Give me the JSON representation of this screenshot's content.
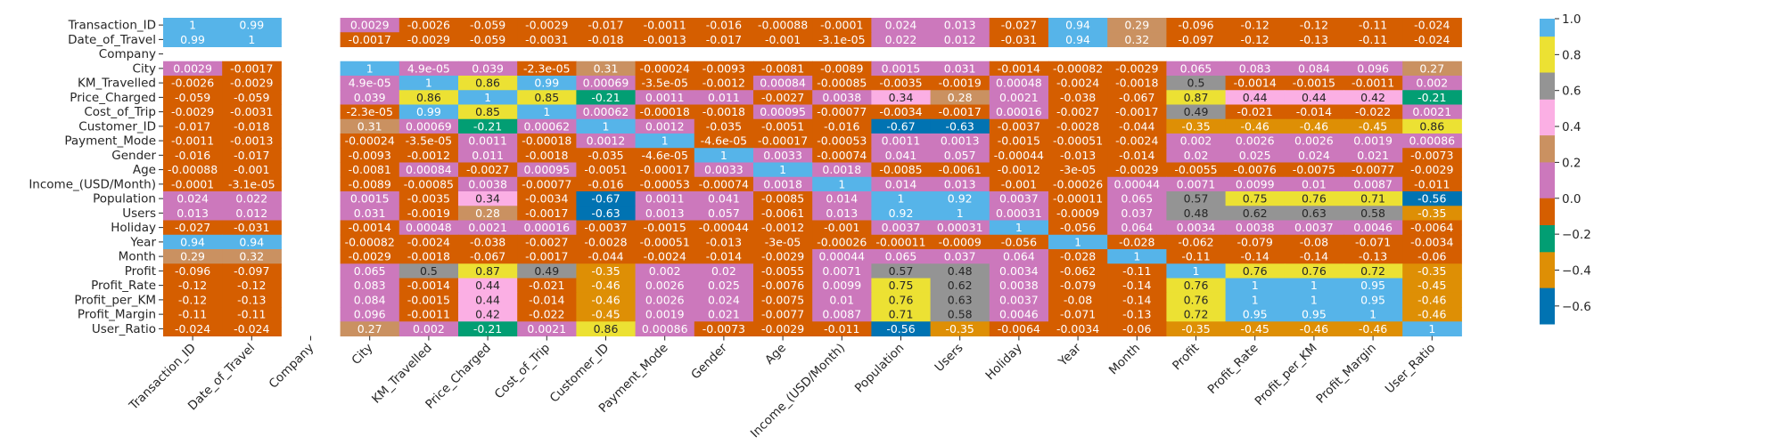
{
  "chart_data": {
    "type": "heatmap",
    "title": "",
    "xlabel": "",
    "ylabel": "",
    "variables": [
      "Transaction_ID",
      "Date_of_Travel",
      "Company",
      "City",
      "KM_Travelled",
      "Price_Charged",
      "Cost_of_Trip",
      "Customer_ID",
      "Payment_Mode",
      "Gender",
      "Age",
      "Income_(USD/Month)",
      "Population",
      "Users",
      "Holiday",
      "Year",
      "Month",
      "Profit",
      "Profit_Rate",
      "Profit_per_KM",
      "Profit_Margin",
      "User_Ratio"
    ],
    "matrix": [
      [
        "1",
        "0.99",
        null,
        "0.0029",
        "-0.0026",
        "-0.059",
        "-0.0029",
        "-0.017",
        "-0.0011",
        "-0.016",
        "-0.00088",
        "-0.0001",
        "0.024",
        "0.013",
        "-0.027",
        "0.94",
        "0.29",
        "-0.096",
        "-0.12",
        "-0.12",
        "-0.11",
        "-0.024"
      ],
      [
        "0.99",
        "1",
        null,
        "-0.0017",
        "-0.0029",
        "-0.059",
        "-0.0031",
        "-0.018",
        "-0.0013",
        "-0.017",
        "-0.001",
        "-3.1e-05",
        "0.022",
        "0.012",
        "-0.031",
        "0.94",
        "0.32",
        "-0.097",
        "-0.12",
        "-0.13",
        "-0.11",
        "-0.024"
      ],
      [
        null,
        null,
        null,
        null,
        null,
        null,
        null,
        null,
        null,
        null,
        null,
        null,
        null,
        null,
        null,
        null,
        null,
        null,
        null,
        null,
        null,
        null
      ],
      [
        "0.0029",
        "-0.0017",
        null,
        "1",
        "4.9e-05",
        "0.039",
        "-2.3e-05",
        "0.31",
        "-0.00024",
        "-0.0093",
        "-0.0081",
        "-0.0089",
        "0.0015",
        "0.031",
        "-0.0014",
        "-0.00082",
        "-0.0029",
        "0.065",
        "0.083",
        "0.084",
        "0.096",
        "0.27"
      ],
      [
        "-0.0026",
        "-0.0029",
        null,
        "4.9e-05",
        "1",
        "0.86",
        "0.99",
        "0.00069",
        "-3.5e-05",
        "-0.0012",
        "0.00084",
        "-0.00085",
        "-0.0035",
        "-0.0019",
        "0.00048",
        "-0.0024",
        "-0.0018",
        "0.5",
        "-0.0014",
        "-0.0015",
        "-0.0011",
        "0.002"
      ],
      [
        "-0.059",
        "-0.059",
        null,
        "0.039",
        "0.86",
        "1",
        "0.85",
        "-0.21",
        "0.0011",
        "0.011",
        "-0.0027",
        "0.0038",
        "0.34",
        "0.28",
        "0.0021",
        "-0.038",
        "-0.067",
        "0.87",
        "0.44",
        "0.44",
        "0.42",
        "-0.21"
      ],
      [
        "-0.0029",
        "-0.0031",
        null,
        "-2.3e-05",
        "0.99",
        "0.85",
        "1",
        "0.00062",
        "-0.00018",
        "-0.0018",
        "0.00095",
        "-0.00077",
        "-0.0034",
        "-0.0017",
        "0.00016",
        "-0.0027",
        "-0.0017",
        "0.49",
        "-0.021",
        "-0.014",
        "-0.022",
        "0.0021"
      ],
      [
        "-0.017",
        "-0.018",
        null,
        "0.31",
        "0.00069",
        "-0.21",
        "0.00062",
        "1",
        "0.0012",
        "-0.035",
        "-0.0051",
        "-0.016",
        "-0.67",
        "-0.63",
        "-0.0037",
        "-0.0028",
        "-0.044",
        "-0.35",
        "-0.46",
        "-0.46",
        "-0.45",
        "0.86"
      ],
      [
        "-0.0011",
        "-0.0013",
        null,
        "-0.00024",
        "-3.5e-05",
        "0.0011",
        "-0.00018",
        "0.0012",
        "1",
        "-4.6e-05",
        "-0.00017",
        "-0.00053",
        "0.0011",
        "0.0013",
        "-0.0015",
        "-0.00051",
        "-0.0024",
        "0.002",
        "0.0026",
        "0.0026",
        "0.0019",
        "0.00086"
      ],
      [
        "-0.016",
        "-0.017",
        null,
        "-0.0093",
        "-0.0012",
        "0.011",
        "-0.0018",
        "-0.035",
        "-4.6e-05",
        "1",
        "0.0033",
        "-0.00074",
        "0.041",
        "0.057",
        "-0.00044",
        "-0.013",
        "-0.014",
        "0.02",
        "0.025",
        "0.024",
        "0.021",
        "-0.0073"
      ],
      [
        "-0.00088",
        "-0.001",
        null,
        "-0.0081",
        "0.00084",
        "-0.0027",
        "0.00095",
        "-0.0051",
        "-0.00017",
        "0.0033",
        "1",
        "0.0018",
        "-0.0085",
        "-0.0061",
        "-0.0012",
        "-3e-05",
        "-0.0029",
        "-0.0055",
        "-0.0076",
        "-0.0075",
        "-0.0077",
        "-0.0029"
      ],
      [
        "-0.0001",
        "-3.1e-05",
        null,
        "-0.0089",
        "-0.00085",
        "0.0038",
        "-0.00077",
        "-0.016",
        "-0.00053",
        "-0.00074",
        "0.0018",
        "1",
        "0.014",
        "0.013",
        "-0.001",
        "-0.00026",
        "0.00044",
        "0.0071",
        "0.0099",
        "0.01",
        "0.0087",
        "-0.011"
      ],
      [
        "0.024",
        "0.022",
        null,
        "0.0015",
        "-0.0035",
        "0.34",
        "-0.0034",
        "-0.67",
        "0.0011",
        "0.041",
        "-0.0085",
        "0.014",
        "1",
        "0.92",
        "0.0037",
        "-0.00011",
        "0.065",
        "0.57",
        "0.75",
        "0.76",
        "0.71",
        "-0.56"
      ],
      [
        "0.013",
        "0.012",
        null,
        "0.031",
        "-0.0019",
        "0.28",
        "-0.0017",
        "-0.63",
        "0.0013",
        "0.057",
        "-0.0061",
        "0.013",
        "0.92",
        "1",
        "0.00031",
        "-0.0009",
        "0.037",
        "0.48",
        "0.62",
        "0.63",
        "0.58",
        "-0.35"
      ],
      [
        "-0.027",
        "-0.031",
        null,
        "-0.0014",
        "0.00048",
        "0.0021",
        "0.00016",
        "-0.0037",
        "-0.0015",
        "-0.00044",
        "-0.0012",
        "-0.001",
        "0.0037",
        "0.00031",
        "1",
        "-0.056",
        "0.064",
        "0.0034",
        "0.0038",
        "0.0037",
        "0.0046",
        "-0.0064"
      ],
      [
        "0.94",
        "0.94",
        null,
        "-0.00082",
        "-0.0024",
        "-0.038",
        "-0.0027",
        "-0.0028",
        "-0.00051",
        "-0.013",
        "-3e-05",
        "-0.00026",
        "-0.00011",
        "-0.0009",
        "-0.056",
        "1",
        "-0.028",
        "-0.062",
        "-0.079",
        "-0.08",
        "-0.071",
        "-0.0034"
      ],
      [
        "0.29",
        "0.32",
        null,
        "-0.0029",
        "-0.0018",
        "-0.067",
        "-0.0017",
        "-0.044",
        "-0.0024",
        "-0.014",
        "-0.0029",
        "0.00044",
        "0.065",
        "0.037",
        "0.064",
        "-0.028",
        "1",
        "-0.11",
        "-0.14",
        "-0.14",
        "-0.13",
        "-0.06"
      ],
      [
        "-0.096",
        "-0.097",
        null,
        "0.065",
        "0.5",
        "0.87",
        "0.49",
        "-0.35",
        "0.002",
        "0.02",
        "-0.0055",
        "0.0071",
        "0.57",
        "0.48",
        "0.0034",
        "-0.062",
        "-0.11",
        "1",
        "0.76",
        "0.76",
        "0.72",
        "-0.35"
      ],
      [
        "-0.12",
        "-0.12",
        null,
        "0.083",
        "-0.0014",
        "0.44",
        "-0.021",
        "-0.46",
        "0.0026",
        "0.025",
        "-0.0076",
        "0.0099",
        "0.75",
        "0.62",
        "0.0038",
        "-0.079",
        "-0.14",
        "0.76",
        "1",
        "1",
        "0.95",
        "-0.45"
      ],
      [
        "-0.12",
        "-0.13",
        null,
        "0.084",
        "-0.0015",
        "0.44",
        "-0.014",
        "-0.46",
        "0.0026",
        "0.024",
        "-0.0075",
        "0.01",
        "0.76",
        "0.63",
        "0.0037",
        "-0.08",
        "-0.14",
        "0.76",
        "1",
        "1",
        "0.95",
        "-0.46"
      ],
      [
        "-0.11",
        "-0.11",
        null,
        "0.096",
        "-0.0011",
        "0.42",
        "-0.022",
        "-0.45",
        "0.0019",
        "0.021",
        "-0.0077",
        "0.0087",
        "0.71",
        "0.58",
        "0.0046",
        "-0.071",
        "-0.13",
        "0.72",
        "0.95",
        "0.95",
        "1",
        "-0.46"
      ],
      [
        "-0.024",
        "-0.024",
        null,
        "0.27",
        "0.002",
        "-0.21",
        "0.0021",
        "0.86",
        "0.00086",
        "-0.0073",
        "-0.0029",
        "-0.011",
        "-0.56",
        "-0.35",
        "-0.0064",
        "-0.0034",
        "-0.06",
        "-0.35",
        "-0.45",
        "-0.46",
        "-0.46",
        "1"
      ]
    ],
    "colorbar": {
      "range": [
        -0.7,
        1.0
      ],
      "ticks": [
        "1.0",
        "0.8",
        "0.6",
        "0.4",
        "0.2",
        "0.0",
        "−0.2",
        "−0.4",
        "−0.6"
      ],
      "tick_values": [
        1.0,
        0.8,
        0.6,
        0.4,
        0.2,
        0.0,
        -0.2,
        -0.4,
        -0.6
      ],
      "bins": [
        {
          "min": -0.7,
          "max": -0.4875,
          "color": "#0173b2"
        },
        {
          "min": -0.4875,
          "max": -0.275,
          "color": "#de8f05"
        },
        {
          "min": -0.275,
          "max": -0.0625,
          "color": "#029e73"
        },
        {
          "min": -0.0625,
          "max": 0.15,
          "color": "#d55e00"
        },
        {
          "min": 0.15,
          "max": 0.3625,
          "color": "#cc78bc"
        },
        {
          "min": 0.3625,
          "max": 0.575,
          "color": "#ca9161"
        },
        {
          "min": 0.575,
          "max": 0.7875,
          "color": "#fbafe4"
        },
        {
          "min": 0.7875,
          "max": 1.0,
          "color": "#949494"
        }
      ]
    }
  },
  "palette": {
    "hot_bins": [
      {
        "min": 0.0,
        "color": "#cc78bc"
      },
      {
        "min": 0.2,
        "color": "#ca9161"
      },
      {
        "min": 0.4,
        "color": "#fbafe4"
      },
      {
        "min": 0.55,
        "color": "#949494"
      },
      {
        "min": 0.75,
        "color": "#ece133"
      },
      {
        "min": 0.9,
        "color": "#56b4e9"
      }
    ],
    "cold_bins": [
      {
        "min": -0.0,
        "color": "#d55e00"
      },
      {
        "min": -0.2,
        "color": "#029e73"
      },
      {
        "min": -0.4,
        "color": "#de8f05"
      },
      {
        "min": -0.6,
        "color": "#0173b2"
      }
    ]
  }
}
